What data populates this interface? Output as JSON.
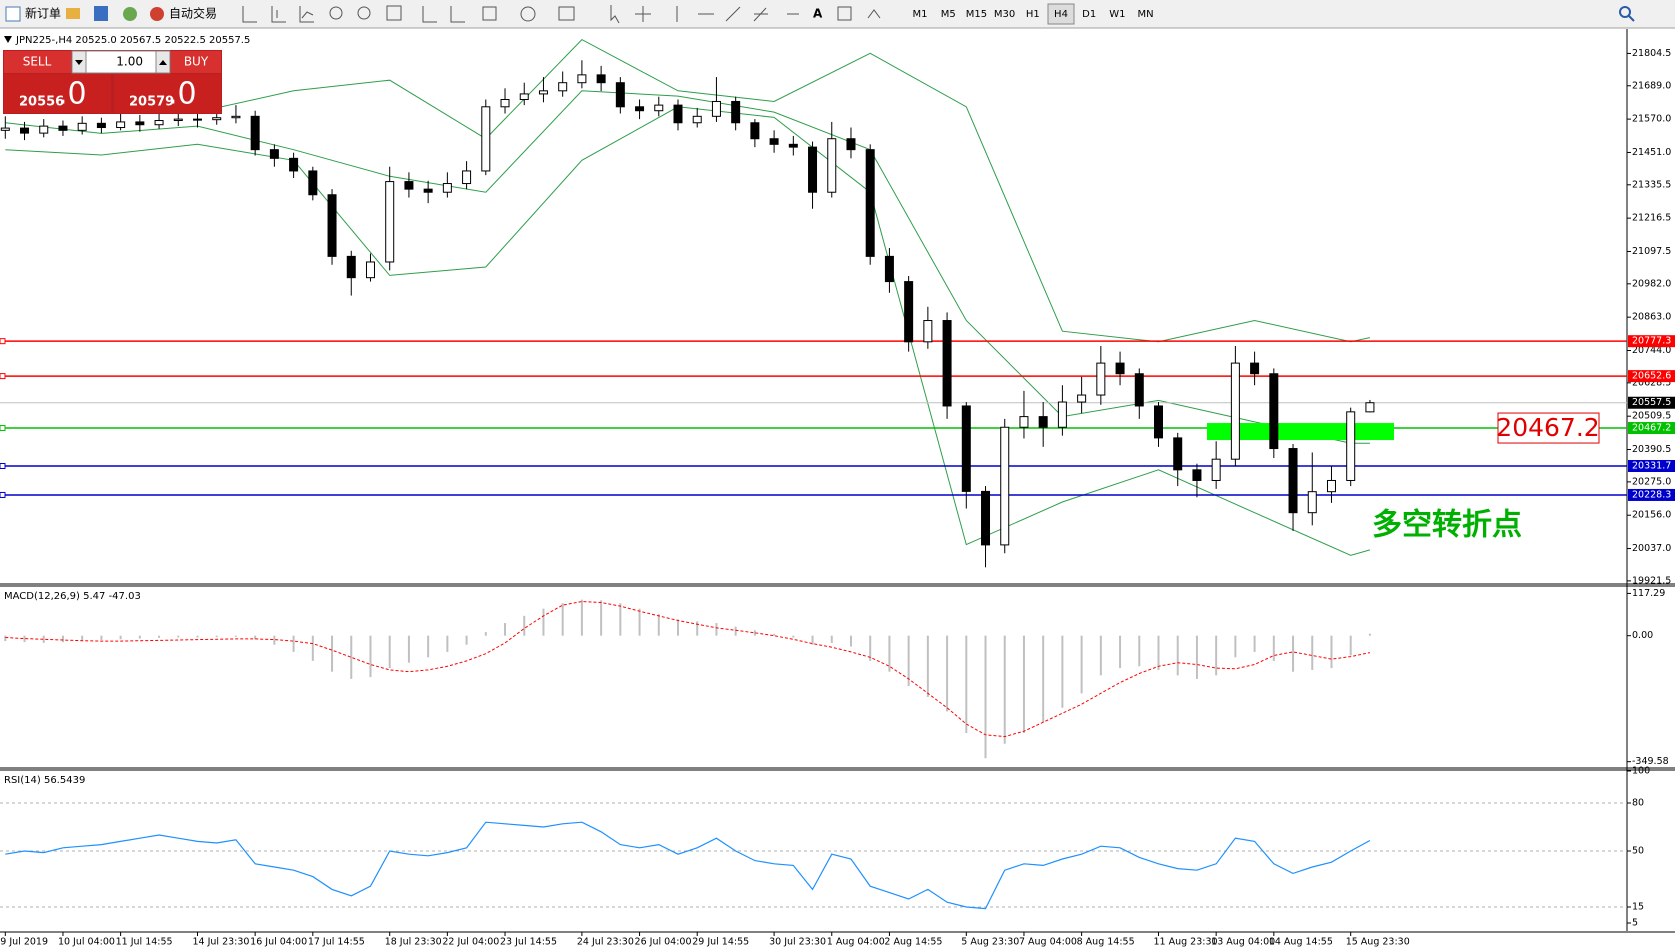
{
  "toolbar": {
    "new_order": "新订单",
    "auto_trading": "自动交易",
    "timeframes": [
      "M1",
      "M5",
      "M15",
      "M30",
      "H1",
      "H4",
      "D1",
      "W1",
      "MN"
    ],
    "active_timeframe": "H4"
  },
  "trade_panel": {
    "sell": "SELL",
    "buy": "BUY",
    "lots": "1.00",
    "bid_main": "20556",
    "bid_frac": ".0",
    "ask_main": "20579",
    "ask_frac": ".0"
  },
  "chart_data": [
    {
      "type": "candlestick",
      "title": "JPN225-,H4  20525.0 20567.5 20522.5 20557.5",
      "categories": [
        "9 Jul 2019",
        null,
        null,
        "10 Jul 04:00",
        null,
        null,
        "11 Jul 14:55",
        null,
        null,
        null,
        "14 Jul 23:30",
        null,
        null,
        "16 Jul 04:00",
        null,
        null,
        "17 Jul 14:55",
        null,
        null,
        null,
        "18 Jul 23:30",
        null,
        null,
        "22 Jul 04:00",
        null,
        null,
        "23 Jul 14:55",
        null,
        null,
        null,
        "24 Jul 23:30",
        null,
        null,
        "26 Jul 04:00",
        null,
        null,
        "29 Jul 14:55",
        null,
        null,
        null,
        "30 Jul 23:30",
        null,
        null,
        "1 Aug 04:00",
        null,
        null,
        "2 Aug 14:55",
        null,
        null,
        null,
        "5 Aug 23:30",
        null,
        null,
        "7 Aug 04:00",
        null,
        null,
        "8 Aug 14:55",
        null,
        null,
        null,
        "11 Aug 23:30",
        null,
        null,
        "13 Aug 04:00",
        null,
        null,
        "14 Aug 14:55",
        null,
        null,
        null,
        "15 Aug 23:30",
        null
      ],
      "open": [
        21530,
        21538,
        21520,
        21545,
        21530,
        21555,
        21540,
        21560,
        21550,
        21565,
        21570,
        21568,
        21575,
        21580,
        21461,
        21430,
        21385,
        21300,
        21080,
        21004,
        21060,
        21347,
        21320,
        21309,
        21340,
        21385,
        21614,
        21640,
        21660,
        21671,
        21700,
        21728,
        21700,
        21614,
        21600,
        21620,
        21557,
        21580,
        21633,
        21557,
        21500,
        21480,
        21470,
        21309,
        21500,
        21461,
        21080,
        20990,
        20775,
        20851,
        20546,
        20241,
        20050,
        20470,
        20508,
        20470,
        20560,
        20585,
        20699,
        20661,
        20546,
        20432,
        20318,
        20280,
        20356,
        20699,
        20661,
        20394,
        20165,
        20240,
        20280,
        20525
      ],
      "high": [
        21580,
        21560,
        21570,
        21565,
        21580,
        21575,
        21590,
        21585,
        21600,
        21610,
        21600,
        21605,
        21620,
        21600,
        21480,
        21450,
        21400,
        21320,
        21100,
        21090,
        21400,
        21380,
        21350,
        21380,
        21420,
        21640,
        21680,
        21700,
        21720,
        21740,
        21780,
        21760,
        21720,
        21640,
        21650,
        21640,
        21610,
        21720,
        21650,
        21570,
        21530,
        21510,
        21490,
        21560,
        21540,
        21480,
        21110,
        21010,
        20900,
        20880,
        20560,
        20260,
        20500,
        20600,
        20560,
        20620,
        20650,
        20760,
        20740,
        20680,
        20560,
        20450,
        20340,
        20420,
        20760,
        20740,
        20680,
        20410,
        20380,
        20330,
        20540,
        20567.5
      ],
      "low": [
        21500,
        21495,
        21505,
        21510,
        21515,
        21520,
        21530,
        21525,
        21535,
        21545,
        21540,
        21550,
        21555,
        21440,
        21400,
        21360,
        21280,
        21050,
        20940,
        20990,
        21030,
        21290,
        21270,
        21290,
        21320,
        21370,
        21590,
        21620,
        21630,
        21650,
        21680,
        21670,
        21590,
        21570,
        21580,
        21530,
        21540,
        21560,
        21530,
        21470,
        21450,
        21440,
        21250,
        21290,
        21430,
        21050,
        20950,
        20740,
        20750,
        20500,
        20180,
        19970,
        20020,
        20430,
        20400,
        20440,
        20520,
        20550,
        20620,
        20500,
        20400,
        20260,
        20220,
        20250,
        20330,
        20620,
        20360,
        20100,
        20120,
        20200,
        20260,
        20522.5
      ],
      "close": [
        21538,
        21520,
        21545,
        21530,
        21555,
        21540,
        21560,
        21550,
        21565,
        21570,
        21568,
        21575,
        21580,
        21461,
        21430,
        21385,
        21300,
        21080,
        21004,
        21060,
        21347,
        21320,
        21309,
        21340,
        21385,
        21614,
        21640,
        21660,
        21671,
        21700,
        21728,
        21700,
        21614,
        21600,
        21620,
        21557,
        21580,
        21633,
        21557,
        21500,
        21480,
        21470,
        21309,
        21500,
        21461,
        21080,
        20990,
        20775,
        20851,
        20546,
        20241,
        20050,
        20470,
        20508,
        20470,
        20560,
        20585,
        20699,
        20661,
        20546,
        20432,
        20318,
        20280,
        20356,
        20699,
        20661,
        20394,
        20165,
        20240,
        20280,
        20525,
        20557.5
      ],
      "up_color": "#ffffff",
      "down_color": "#000000",
      "bands": {
        "color": "#2e9e4a",
        "x": [
          0,
          5,
          10,
          15,
          20,
          25,
          30,
          35,
          40,
          45,
          50,
          55,
          60,
          65,
          70,
          71
        ],
        "upper": [
          21614,
          21652,
          21595,
          21671,
          21709,
          21500,
          21854,
          21671,
          21633,
          21805,
          21614,
          20813,
          20775,
          20851,
          20775,
          20790
        ],
        "middle": [
          21557,
          21519,
          21545,
          21461,
          21366,
          21309,
          21671,
          21652,
          21595,
          21461,
          20851,
          20508,
          20566,
          20489,
          20413,
          20413
        ],
        "lower": [
          21461,
          21442,
          21480,
          21423,
          21012,
          21042,
          21423,
          21614,
          21576,
          21309,
          20051,
          20203,
          20318,
          20165,
          20013,
          20032
        ]
      },
      "hlines": [
        {
          "value": 20777.3,
          "color": "#ff0000"
        },
        {
          "value": 20652.6,
          "color": "#ff0000"
        },
        {
          "value": 20467.2,
          "color": "#00c000"
        },
        {
          "value": 20331.7,
          "color": "#0000cc"
        },
        {
          "value": 20228.3,
          "color": "#0000cc"
        }
      ],
      "last_price": 20557.5,
      "annotation": "多空转折点",
      "ylim": [
        19914,
        21881
      ],
      "yticks": [
        21804.5,
        {
          "value": 21689,
          "label": "21689.0"
        },
        {
          "value": 21570,
          "label": "21570.0"
        },
        {
          "value": 21451,
          "label": "21451.0"
        },
        21335.5,
        21216.5,
        21097.5,
        {
          "value": 20982,
          "label": "20982.0"
        },
        {
          "value": 20863,
          "label": "20863.0"
        },
        {
          "value": 20744,
          "label": "20744.0"
        },
        20628.5,
        20509.5,
        20390.5,
        {
          "value": 20275,
          "label": "20275.0"
        },
        {
          "value": 20156,
          "label": "20156.0"
        },
        {
          "value": 20037,
          "label": "20037.0"
        },
        19921.5
      ]
    },
    {
      "type": "macd",
      "title": "MACD(12,26,9) 5.47 -47.03",
      "histogram": [
        -15,
        -18,
        -20,
        -18,
        -15,
        -12,
        -10,
        -8,
        -6,
        -5,
        -5,
        -4,
        -3,
        -10,
        -25,
        -45,
        -70,
        -100,
        -120,
        -115,
        -90,
        -75,
        -60,
        -45,
        -25,
        10,
        35,
        55,
        75,
        90,
        100,
        98,
        90,
        75,
        60,
        45,
        40,
        35,
        25,
        15,
        5,
        -5,
        -25,
        -20,
        -30,
        -70,
        -100,
        -140,
        -170,
        -210,
        -270,
        -340,
        -300,
        -270,
        -240,
        -200,
        -160,
        -110,
        -90,
        -85,
        -95,
        -110,
        -120,
        -110,
        -60,
        -45,
        -70,
        -100,
        -95,
        -90,
        -55,
        5.47
      ],
      "signal": [
        -5,
        -8,
        -10,
        -12,
        -14,
        -15,
        -15,
        -14,
        -13,
        -12,
        -11,
        -10,
        -9,
        -9,
        -11,
        -15,
        -22,
        -40,
        -60,
        -80,
        -95,
        -100,
        -95,
        -85,
        -70,
        -50,
        -20,
        20,
        55,
        85,
        95,
        92,
        82,
        68,
        55,
        42,
        32,
        22,
        15,
        8,
        0,
        -10,
        -22,
        -32,
        -45,
        -60,
        -85,
        -120,
        -160,
        -200,
        -245,
        -275,
        -280,
        -265,
        -240,
        -215,
        -190,
        -160,
        -130,
        -105,
        -85,
        -75,
        -80,
        -90,
        -92,
        -80,
        -55,
        -45,
        -55,
        -65,
        -58,
        -47.03
      ],
      "histogram_color": "#c0c0c0",
      "signal_color": "#ff0000",
      "ylim": [
        -364.4,
        135.1
      ],
      "yticks": [
        117.29,
        {
          "value": 0,
          "label": "0.00"
        },
        -349.58
      ]
    },
    {
      "type": "line",
      "title": "RSI(14) 56.5439",
      "values": [
        48,
        50,
        49,
        52,
        53,
        54,
        56,
        58,
        60,
        58,
        56,
        55,
        57,
        42,
        40,
        38,
        34,
        26,
        22,
        28,
        50,
        48,
        47,
        49,
        52,
        68,
        67,
        66,
        65,
        67,
        68,
        62,
        54,
        52,
        54,
        48,
        52,
        58,
        50,
        44,
        42,
        41,
        26,
        48,
        45,
        28,
        24,
        20,
        26,
        18,
        15,
        14,
        38,
        42,
        41,
        45,
        48,
        53,
        52,
        46,
        42,
        39,
        38,
        42,
        58,
        56,
        42,
        36,
        40,
        43,
        50,
        56.54
      ],
      "color": "#1e90ff",
      "levels": [
        80,
        50,
        15
      ],
      "ylim": [
        0,
        100
      ],
      "yticks": [
        100,
        80,
        50,
        15,
        5
      ]
    }
  ]
}
